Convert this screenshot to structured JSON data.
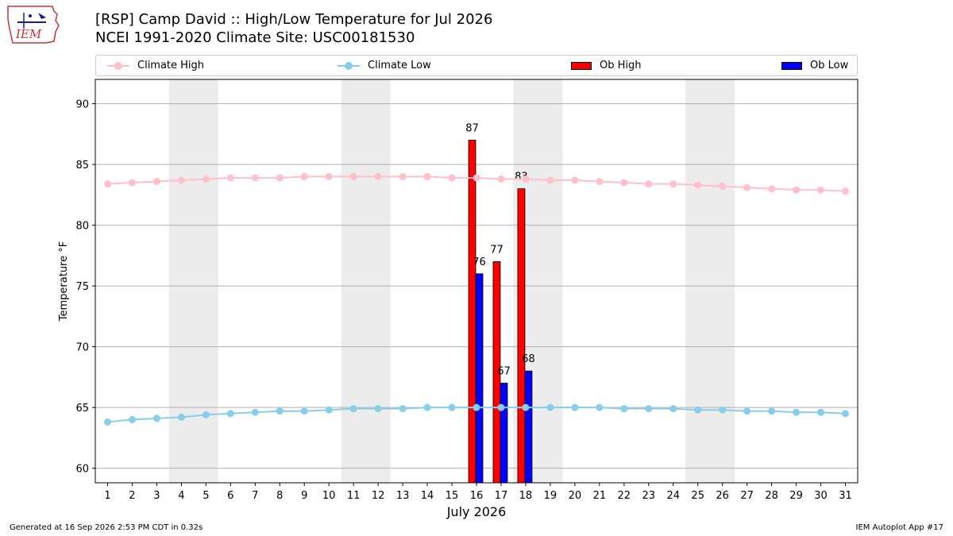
{
  "header": {
    "logo_text": "IEM",
    "title_line1": "[RSP] Camp David :: High/Low Temperature for Jul 2026",
    "title_line2": "NCEI 1991-2020 Climate Site: USC00181530"
  },
  "legend": {
    "climate_high": "Climate High",
    "climate_low": "Climate Low",
    "ob_high": "Ob High",
    "ob_low": "Ob Low"
  },
  "footer": {
    "left": "Generated at 16 Sep 2026 2:53 PM CDT in 0.32s",
    "right": "IEM Autoplot App #17"
  },
  "chart_data": {
    "type": "bar",
    "xlabel": "July 2026",
    "ylabel": "Temperature °F",
    "xlim": [
      0.5,
      31.5
    ],
    "ylim": [
      58.8,
      92.0
    ],
    "yticks": [
      60,
      65,
      70,
      75,
      80,
      85,
      90
    ],
    "x": [
      1,
      2,
      3,
      4,
      5,
      6,
      7,
      8,
      9,
      10,
      11,
      12,
      13,
      14,
      15,
      16,
      17,
      18,
      19,
      20,
      21,
      22,
      23,
      24,
      25,
      26,
      27,
      28,
      29,
      30,
      31
    ],
    "weekend_shading": [
      [
        3.5,
        5.5
      ],
      [
        10.5,
        12.5
      ],
      [
        17.5,
        19.5
      ],
      [
        24.5,
        26.5
      ]
    ],
    "grid": "y",
    "legend_position": "top",
    "series": [
      {
        "name": "Climate High",
        "kind": "line",
        "color": "#ffc0cb",
        "values": [
          83.4,
          83.5,
          83.6,
          83.7,
          83.8,
          83.9,
          83.9,
          83.9,
          84.0,
          84.0,
          84.0,
          84.0,
          84.0,
          84.0,
          83.9,
          83.9,
          83.8,
          83.8,
          83.7,
          83.7,
          83.6,
          83.5,
          83.4,
          83.4,
          83.3,
          83.2,
          83.1,
          83.0,
          82.9,
          82.9,
          82.8
        ]
      },
      {
        "name": "Climate Low",
        "kind": "line",
        "color": "#87ceeb",
        "values": [
          63.8,
          64.0,
          64.1,
          64.2,
          64.4,
          64.5,
          64.6,
          64.7,
          64.7,
          64.8,
          64.9,
          64.9,
          64.9,
          65.0,
          65.0,
          65.0,
          65.0,
          65.0,
          65.0,
          65.0,
          65.0,
          64.9,
          64.9,
          64.9,
          64.8,
          64.8,
          64.7,
          64.7,
          64.6,
          64.6,
          64.5
        ]
      },
      {
        "name": "Ob High",
        "kind": "bar",
        "color": "#ff0000",
        "points": [
          {
            "x": 16,
            "value": 87,
            "label": "87"
          },
          {
            "x": 17,
            "value": 77,
            "label": "77"
          },
          {
            "x": 18,
            "value": 83,
            "label": "83"
          }
        ]
      },
      {
        "name": "Ob Low",
        "kind": "bar",
        "color": "#0000ff",
        "points": [
          {
            "x": 16,
            "value": 76,
            "label": "76"
          },
          {
            "x": 17,
            "value": 67,
            "label": "67"
          },
          {
            "x": 18,
            "value": 68,
            "label": "68"
          }
        ]
      }
    ]
  }
}
